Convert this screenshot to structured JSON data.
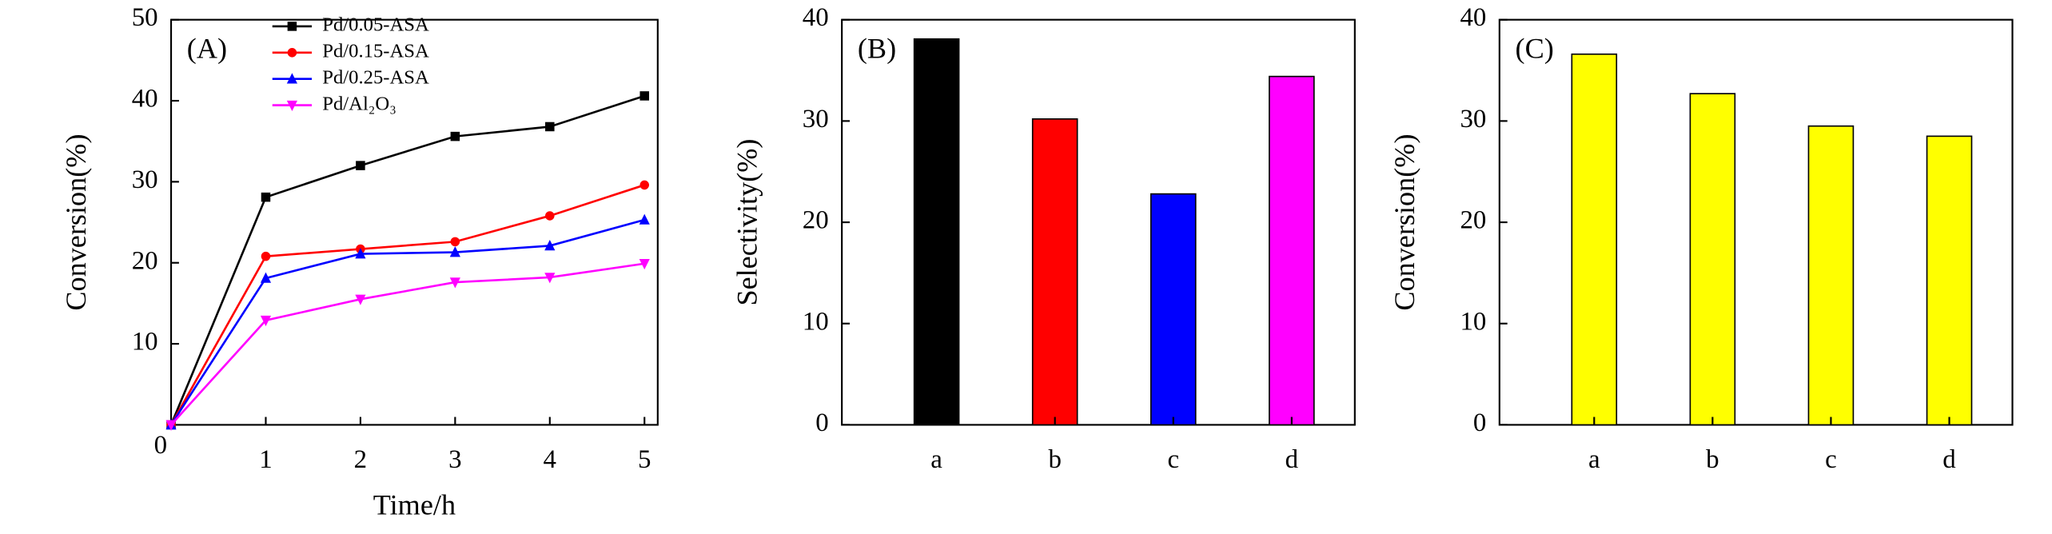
{
  "chart_data": [
    {
      "type": "line",
      "panel": "(A)",
      "x_label": "Time/h",
      "y_label": "Conversion(%)",
      "x": [
        0,
        1,
        2,
        3,
        4,
        5
      ],
      "xlim": [
        0,
        5.14
      ],
      "xticks": [
        0,
        1,
        2,
        3,
        4,
        5
      ],
      "ylim": [
        0,
        50
      ],
      "yticks": [
        10,
        20,
        30,
        40,
        50
      ],
      "series": [
        {
          "name": "Pd/0.05-ASA",
          "color": "#000000",
          "marker": "square",
          "values": [
            0,
            28.1,
            32,
            35.6,
            36.8,
            40.6
          ]
        },
        {
          "name": "Pd/0.15-ASA",
          "color": "#ff0000",
          "marker": "circle",
          "values": [
            0,
            20.8,
            21.7,
            22.6,
            25.8,
            29.6
          ]
        },
        {
          "name": "Pd/0.25-ASA",
          "color": "#0000ff",
          "marker": "triangle-up",
          "values": [
            0,
            18.1,
            21.1,
            21.3,
            22.1,
            25.3
          ]
        },
        {
          "name": "Pd/Al₂O₃",
          "color": "#ff00ff",
          "marker": "triangle-down",
          "values": [
            0,
            12.9,
            15.5,
            17.6,
            18.2,
            19.9
          ]
        }
      ]
    },
    {
      "type": "bar",
      "panel": "(B)",
      "y_label": "Selectivity(%)",
      "categories": [
        "a",
        "b",
        "c",
        "d"
      ],
      "values": [
        38.1,
        30.2,
        22.8,
        34.4
      ],
      "colors": [
        "#000000",
        "#ff0000",
        "#0000ff",
        "#ff00ff"
      ],
      "ylim": [
        0,
        40
      ],
      "yticks": [
        0,
        10,
        20,
        30,
        40
      ]
    },
    {
      "type": "bar",
      "panel": "(C)",
      "y_label": "Conversion(%)",
      "categories": [
        "a",
        "b",
        "c",
        "d"
      ],
      "values": [
        36.6,
        32.7,
        29.5,
        28.5
      ],
      "colors": [
        "#ffff00",
        "#ffff00",
        "#ffff00",
        "#ffff00"
      ],
      "ylim": [
        0,
        40
      ],
      "yticks": [
        0,
        10,
        20,
        30,
        40
      ]
    }
  ]
}
